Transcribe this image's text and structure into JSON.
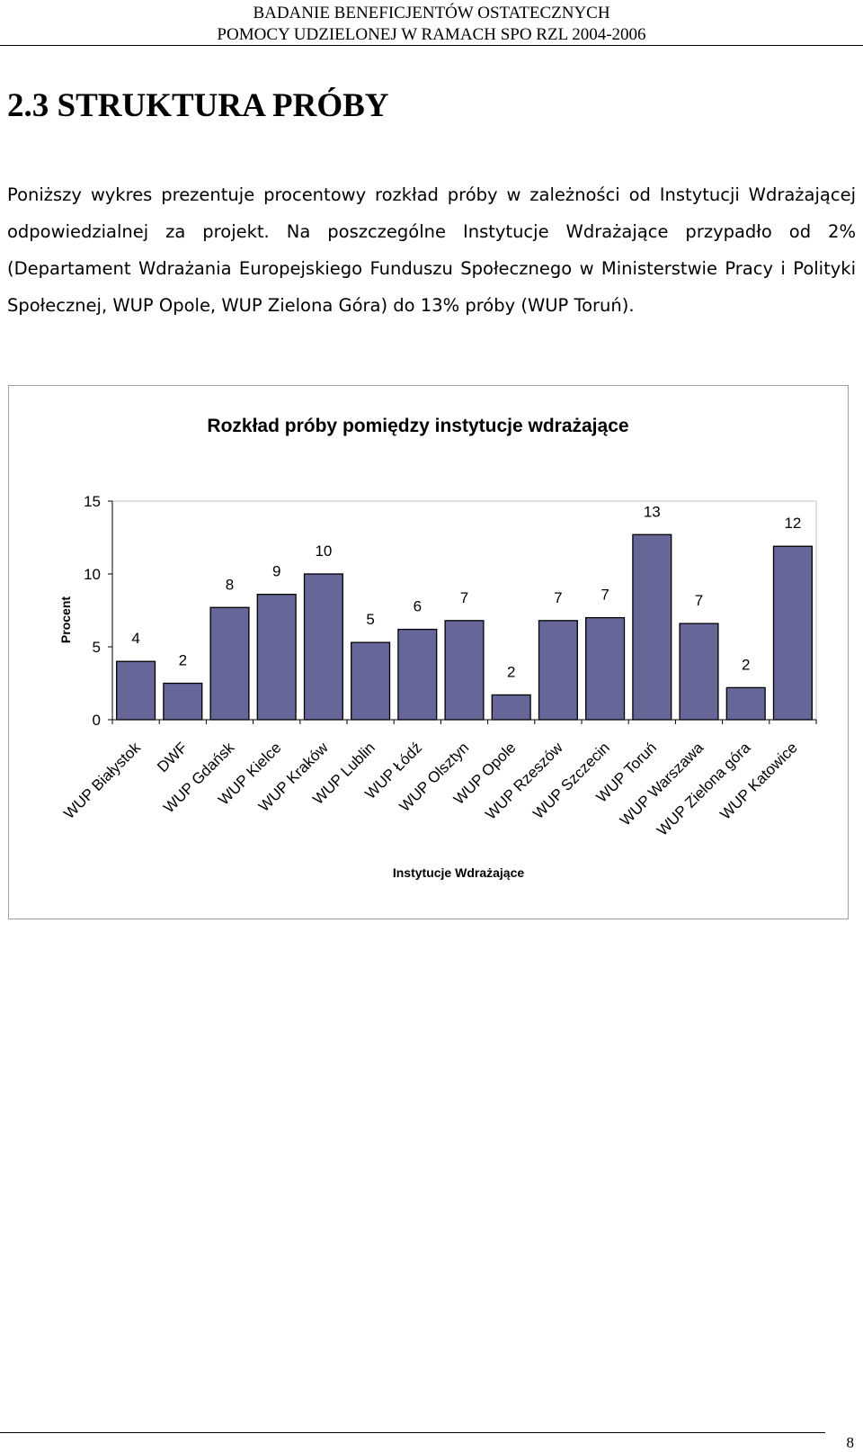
{
  "header": {
    "line1": "BADANIE BENEFICJENTÓW OSTATECZNYCH",
    "line2": "POMOCY UDZIELONEJ W RAMACH SPO RZL 2004-2006"
  },
  "section_title": "2.3 STRUKTURA PRÓBY",
  "paragraph": "Poniższy wykres prezentuje procentowy rozkład próby w zależności od Instytucji Wdrażającej odpowiedzialnej za projekt. Na poszczególne Instytucje Wdrażające przypadło od 2% (Departament Wdrażania Europejskiego Funduszu Społecznego w Ministerstwie Pracy i Polityki Społecznej, WUP Opole, WUP Zielona Góra) do 13% próby (WUP Toruń).",
  "chart_data": {
    "type": "bar",
    "title": "Rozkład próby pomiędzy instytucje wdrażające",
    "xlabel": "Instytucje Wdrażające",
    "ylabel": "Procent",
    "ylim": [
      0,
      15
    ],
    "yticks": [
      0,
      5,
      10,
      15
    ],
    "grid": false,
    "categories": [
      "WUP Białystok",
      "DWF",
      "WUP Gdańsk",
      "WUP Kielce",
      "WUP Kraków",
      "WUP Lublin",
      "WUP Łódź",
      "WUP Olsztyn",
      "WUP Opole",
      "WUP Rzeszów",
      "WUP Szczecin",
      "WUP Toruń",
      "WUP Warszawa",
      "WUP Zielona góra",
      "WUP Katowice"
    ],
    "values": [
      4.0,
      2.5,
      7.7,
      8.6,
      10.0,
      5.3,
      6.2,
      6.8,
      1.7,
      6.8,
      7.0,
      12.7,
      6.6,
      2.2,
      11.9
    ],
    "data_labels": [
      "4",
      "2",
      "8",
      "9",
      "10",
      "5",
      "6",
      "7",
      "2",
      "7",
      "7",
      "13",
      "7",
      "2",
      "12"
    ],
    "bar_color": "#666699"
  },
  "footer": {
    "page_number": "8"
  }
}
